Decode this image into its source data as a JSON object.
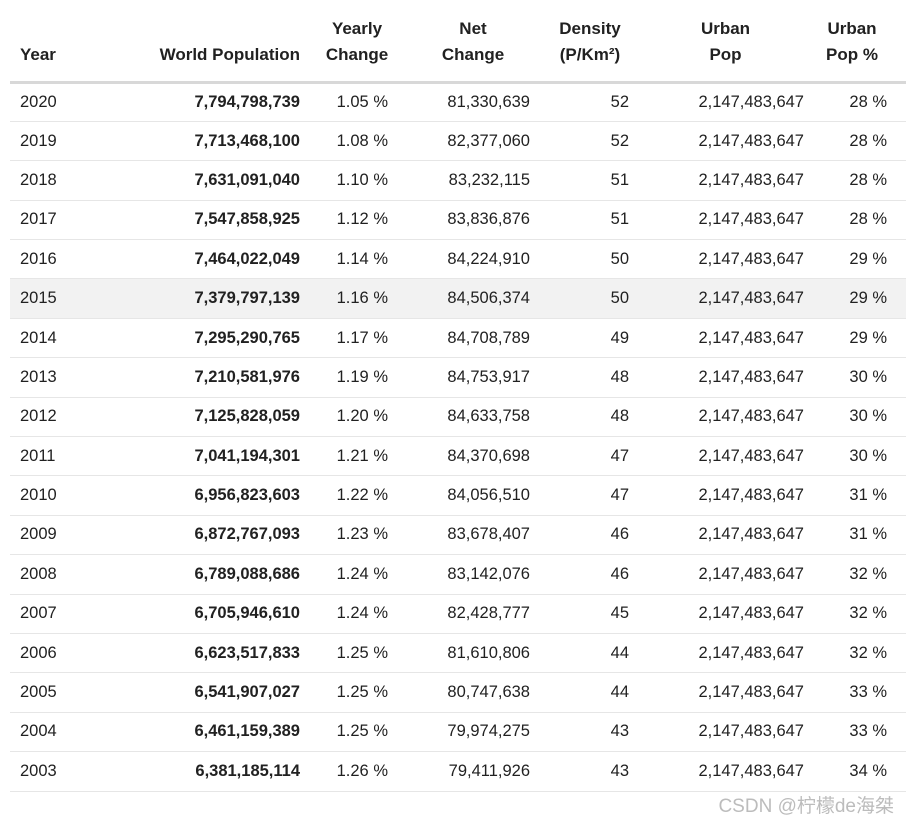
{
  "header": {
    "columns": [
      {
        "line1": "",
        "line2": "Year"
      },
      {
        "line1": "",
        "line2": "World Population"
      },
      {
        "line1": "Yearly",
        "line2": "Change"
      },
      {
        "line1": "Net",
        "line2": "Change"
      },
      {
        "line1": "Density",
        "line2": "(P/Km²)"
      },
      {
        "line1": "Urban",
        "line2": "Pop"
      },
      {
        "line1": "Urban",
        "line2": "Pop %"
      }
    ]
  },
  "chart_data": {
    "type": "table",
    "columns": [
      "Year",
      "World Population",
      "Yearly Change",
      "Net Change",
      "Density (P/Km²)",
      "Urban Pop",
      "Urban Pop %"
    ],
    "highlighted_year": "2015",
    "rows": [
      {
        "year": "2020",
        "world_population": "7,794,798,739",
        "yearly_change": "1.05 %",
        "net_change": "81,330,639",
        "density": "52",
        "urban_pop": "2,147,483,647",
        "urban_pop_pct": "28 %"
      },
      {
        "year": "2019",
        "world_population": "7,713,468,100",
        "yearly_change": "1.08 %",
        "net_change": "82,377,060",
        "density": "52",
        "urban_pop": "2,147,483,647",
        "urban_pop_pct": "28 %"
      },
      {
        "year": "2018",
        "world_population": "7,631,091,040",
        "yearly_change": "1.10 %",
        "net_change": "83,232,115",
        "density": "51",
        "urban_pop": "2,147,483,647",
        "urban_pop_pct": "28 %"
      },
      {
        "year": "2017",
        "world_population": "7,547,858,925",
        "yearly_change": "1.12 %",
        "net_change": "83,836,876",
        "density": "51",
        "urban_pop": "2,147,483,647",
        "urban_pop_pct": "28 %"
      },
      {
        "year": "2016",
        "world_population": "7,464,022,049",
        "yearly_change": "1.14 %",
        "net_change": "84,224,910",
        "density": "50",
        "urban_pop": "2,147,483,647",
        "urban_pop_pct": "29 %"
      },
      {
        "year": "2015",
        "world_population": "7,379,797,139",
        "yearly_change": "1.16 %",
        "net_change": "84,506,374",
        "density": "50",
        "urban_pop": "2,147,483,647",
        "urban_pop_pct": "29 %"
      },
      {
        "year": "2014",
        "world_population": "7,295,290,765",
        "yearly_change": "1.17 %",
        "net_change": "84,708,789",
        "density": "49",
        "urban_pop": "2,147,483,647",
        "urban_pop_pct": "29 %"
      },
      {
        "year": "2013",
        "world_population": "7,210,581,976",
        "yearly_change": "1.19 %",
        "net_change": "84,753,917",
        "density": "48",
        "urban_pop": "2,147,483,647",
        "urban_pop_pct": "30 %"
      },
      {
        "year": "2012",
        "world_population": "7,125,828,059",
        "yearly_change": "1.20 %",
        "net_change": "84,633,758",
        "density": "48",
        "urban_pop": "2,147,483,647",
        "urban_pop_pct": "30 %"
      },
      {
        "year": "2011",
        "world_population": "7,041,194,301",
        "yearly_change": "1.21 %",
        "net_change": "84,370,698",
        "density": "47",
        "urban_pop": "2,147,483,647",
        "urban_pop_pct": "30 %"
      },
      {
        "year": "2010",
        "world_population": "6,956,823,603",
        "yearly_change": "1.22 %",
        "net_change": "84,056,510",
        "density": "47",
        "urban_pop": "2,147,483,647",
        "urban_pop_pct": "31 %"
      },
      {
        "year": "2009",
        "world_population": "6,872,767,093",
        "yearly_change": "1.23 %",
        "net_change": "83,678,407",
        "density": "46",
        "urban_pop": "2,147,483,647",
        "urban_pop_pct": "31 %"
      },
      {
        "year": "2008",
        "world_population": "6,789,088,686",
        "yearly_change": "1.24 %",
        "net_change": "83,142,076",
        "density": "46",
        "urban_pop": "2,147,483,647",
        "urban_pop_pct": "32 %"
      },
      {
        "year": "2007",
        "world_population": "6,705,946,610",
        "yearly_change": "1.24 %",
        "net_change": "82,428,777",
        "density": "45",
        "urban_pop": "2,147,483,647",
        "urban_pop_pct": "32 %"
      },
      {
        "year": "2006",
        "world_population": "6,623,517,833",
        "yearly_change": "1.25 %",
        "net_change": "81,610,806",
        "density": "44",
        "urban_pop": "2,147,483,647",
        "urban_pop_pct": "32 %"
      },
      {
        "year": "2005",
        "world_population": "6,541,907,027",
        "yearly_change": "1.25 %",
        "net_change": "80,747,638",
        "density": "44",
        "urban_pop": "2,147,483,647",
        "urban_pop_pct": "33 %"
      },
      {
        "year": "2004",
        "world_population": "6,461,159,389",
        "yearly_change": "1.25 %",
        "net_change": "79,974,275",
        "density": "43",
        "urban_pop": "2,147,483,647",
        "urban_pop_pct": "33 %"
      },
      {
        "year": "2003",
        "world_population": "6,381,185,114",
        "yearly_change": "1.26 %",
        "net_change": "79,411,926",
        "density": "43",
        "urban_pop": "2,147,483,647",
        "urban_pop_pct": "34 %"
      }
    ]
  },
  "watermark": {
    "text": "CSDN @柠檬de海桀"
  },
  "colors": {
    "background": "#ffffff",
    "text": "#212121",
    "header_border": "#d8d8d8",
    "row_border": "#e6e6e6",
    "highlight_row_bg": "#f2f2f2",
    "watermark": "#b6b6b6"
  }
}
